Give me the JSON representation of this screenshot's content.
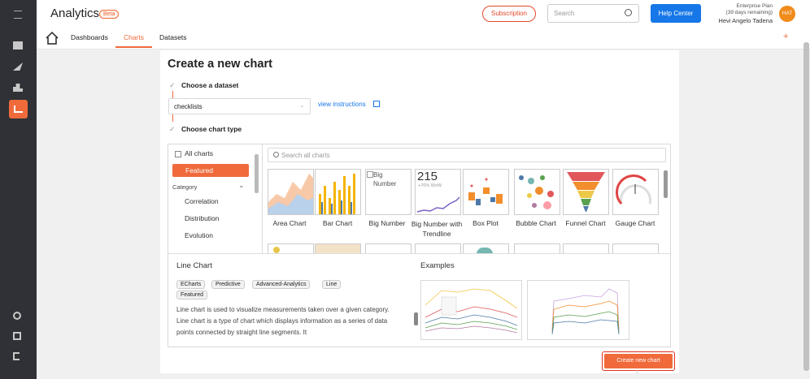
{
  "header": {
    "title": "Analytics",
    "badge": "Beta",
    "subscription": "Subscription",
    "search_placeholder": "Search",
    "help": "Help Center",
    "plan": "Enterprise Plan",
    "plan_remaining": "(39 days remaining)",
    "user": "Hevi Angelo Tadena",
    "avatar": "HAT"
  },
  "nav": {
    "tabs": [
      "Dashboards",
      "Charts",
      "Datasets"
    ]
  },
  "form": {
    "title": "Create a new chart",
    "step1": "Choose a dataset",
    "dataset": "checklists",
    "instructions": "view instructions",
    "step2": "Choose chart type"
  },
  "picker": {
    "all": "All charts",
    "featured": "Featured",
    "category": "Category",
    "categories": [
      "Correlation",
      "Distribution",
      "Evolution"
    ],
    "search_placeholder": "Search all charts",
    "tiles": [
      "Area Chart",
      "Bar Chart",
      "Big Number",
      "Big Number with Trendline",
      "Box Plot",
      "Bubble Chart",
      "Funnel Chart",
      "Gauge Chart"
    ],
    "big_number_alt": "Big Number",
    "trend_number": "215",
    "trend_change": "+70% WoW"
  },
  "details": {
    "name": "Line Chart",
    "tags": [
      "ECharts",
      "Predictive",
      "Advanced-Analytics",
      "Line",
      "Featured"
    ],
    "description": "Line chart is used to visualize measurements taken over a given category. Line chart is a type of chart which displays information as a series of data points connected by straight line segments. It",
    "examples": "Examples"
  },
  "action": {
    "create": "Create new chart"
  }
}
